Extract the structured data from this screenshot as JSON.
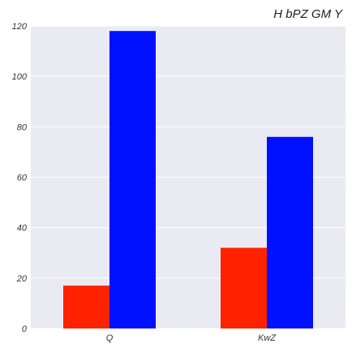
{
  "chart_data": {
    "type": "bar",
    "title": "H bPZ GM Y",
    "xlabel": "",
    "ylabel": "",
    "categories": [
      "Q",
      "KwZ"
    ],
    "series": [
      {
        "values": [
          17,
          32
        ],
        "color": "#ff2200"
      },
      {
        "values": [
          118,
          76
        ],
        "color": "#0011ff"
      }
    ],
    "ylim": [
      0,
      120
    ],
    "yticks": [
      0,
      20,
      40,
      60,
      80,
      100,
      120
    ],
    "grid": true,
    "legend": "none",
    "background": "#eaeaf2",
    "grid_color": "#ffffff"
  }
}
